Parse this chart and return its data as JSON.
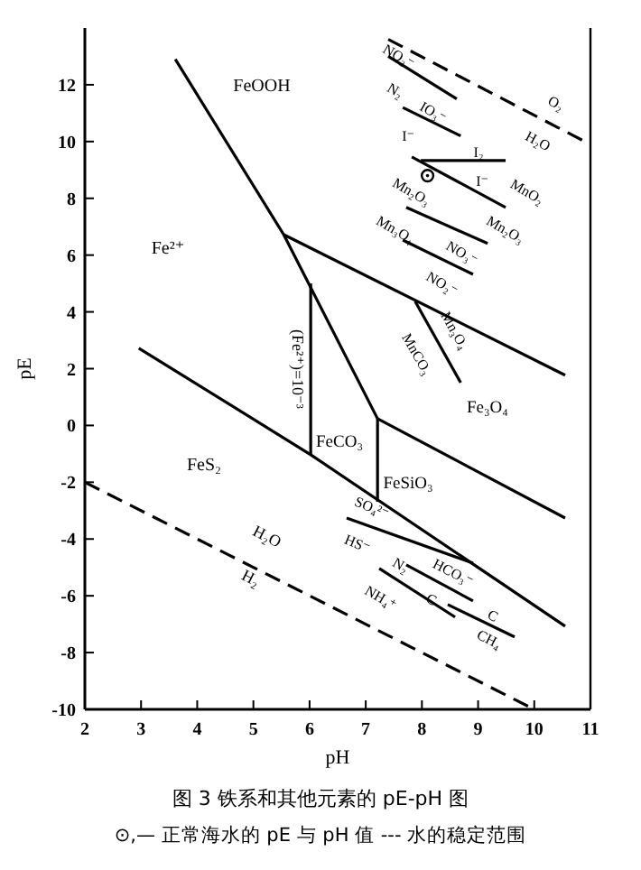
{
  "chart_data": {
    "type": "line",
    "title": "图 3  铁系和其他元素的 pE-pH 图",
    "subtitle": "⊙,— 正常海水的 pE 与 pH 值   --- 水的稳定范围",
    "xlabel": "pH",
    "ylabel": "pE",
    "xlim": [
      2,
      11
    ],
    "ylim": [
      -10,
      14
    ],
    "xticks": [
      2,
      3,
      4,
      5,
      6,
      7,
      8,
      9,
      10,
      11
    ],
    "yticks": [
      -10,
      -8,
      -6,
      -4,
      -2,
      0,
      2,
      4,
      6,
      8,
      10,
      12
    ],
    "grid": false,
    "marker": "none",
    "line_style": "solid",
    "series": [
      {
        "color": "#000000",
        "x": [
          3.61,
          5.54,
          7.21
        ],
        "values": [
          12.9,
          6.72,
          0.24
        ]
      },
      {
        "color": "#000000",
        "x": [
          5.54,
          10.55
        ],
        "values": [
          6.72,
          1.77
        ]
      },
      {
        "name": "(Fe²⁺)=10⁻³",
        "color": "#000000",
        "x": [
          6.02,
          6.02
        ],
        "values": [
          5.0,
          -1.03
        ]
      },
      {
        "color": "#000000",
        "x": [
          2.96,
          6.02,
          10.55
        ],
        "values": [
          2.72,
          -1.03,
          -7.07
        ]
      },
      {
        "color": "#000000",
        "x": [
          7.21,
          7.21
        ],
        "values": [
          0.24,
          -2.69
        ]
      },
      {
        "color": "#000000",
        "x": [
          7.21,
          10.55
        ],
        "values": [
          0.24,
          -3.26
        ]
      },
      {
        "color": "#000000",
        "x": [
          7.88,
          8.69
        ],
        "values": [
          4.37,
          1.51
        ]
      },
      {
        "color": "#000000",
        "x": [
          7.4,
          10.9
        ],
        "values": [
          13.6,
          10.0
        ],
        "line_style": "dashed"
      },
      {
        "color": "#000000",
        "x": [
          2,
          10
        ],
        "values": [
          -2,
          -10
        ],
        "line_style": "dashed"
      },
      {
        "color": "#000000",
        "x": [
          7.4,
          8.62
        ],
        "values": [
          13.0,
          11.5
        ]
      },
      {
        "color": "#000000",
        "x": [
          7.66,
          8.69
        ],
        "values": [
          11.2,
          10.2
        ]
      },
      {
        "color": "#000000",
        "x": [
          7.98,
          9.49
        ],
        "values": [
          9.33,
          9.33
        ]
      },
      {
        "color": "#000000",
        "x": [
          7.82,
          9.49
        ],
        "values": [
          9.46,
          7.68
        ]
      },
      {
        "color": "#000000",
        "x": [
          7.72,
          9.17
        ],
        "values": [
          7.68,
          6.41
        ]
      },
      {
        "color": "#000000",
        "x": [
          7.66,
          8.91
        ],
        "values": [
          6.53,
          5.32
        ]
      },
      {
        "color": "#000000",
        "x": [
          6.66,
          8.91
        ],
        "values": [
          -3.26,
          -4.85
        ]
      },
      {
        "color": "#000000",
        "x": [
          7.72,
          8.91
        ],
        "values": [
          -4.91,
          -6.18
        ]
      },
      {
        "color": "#000000",
        "x": [
          8.46,
          9.65
        ],
        "values": [
          -6.31,
          -7.45
        ]
      },
      {
        "color": "#000000",
        "x": [
          7.24,
          8.59
        ],
        "values": [
          -5.04,
          -6.75
        ]
      },
      {
        "type": "scatter",
        "marker": "circle",
        "color": "#000000",
        "x": [
          8.1
        ],
        "values": [
          8.8
        ]
      }
    ],
    "annotations": [
      "FeOOH",
      "Fe²⁺",
      "FeS₂",
      "FeCO₃",
      "FeSiO₃",
      "Fe₃O₄",
      "NO₃⁻",
      "N₂",
      "IO₃⁻",
      "I⁻",
      "O₂",
      "H₂O",
      "I₂",
      "I⁻",
      "MnO₂",
      "Mn₂O₃",
      "Mn₂O₃",
      "Mn₃O₄",
      "NO₃⁻",
      "NO₂⁻",
      "Mn₃O₄",
      "MnCO₃",
      "SO₄²⁻",
      "HS⁻",
      "N₂",
      "HCO₃⁻",
      "C",
      "C",
      "CH₄",
      "NH₄⁺",
      "H₂O",
      "H₂"
    ]
  }
}
